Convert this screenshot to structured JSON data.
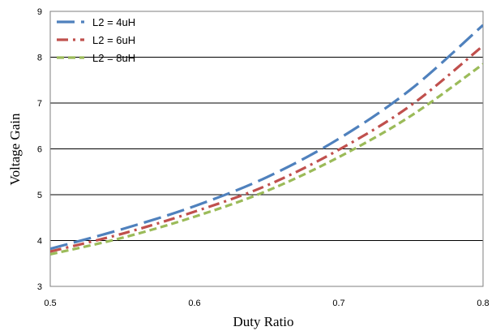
{
  "chart_data": {
    "type": "line",
    "title": "",
    "xlabel": "Duty Ratio",
    "ylabel": "Voltage Gain",
    "xlim": [
      0.5,
      0.8
    ],
    "ylim": [
      3,
      9
    ],
    "x_ticks": [
      "0.5",
      "0.6",
      "0.7",
      "0.8"
    ],
    "y_ticks": [
      "3",
      "4",
      "5",
      "6",
      "7",
      "8",
      "9"
    ],
    "grid": "horizontal",
    "legend_position": "top-left",
    "x": [
      0.5,
      0.55,
      0.6,
      0.65,
      0.7,
      0.75,
      0.8
    ],
    "series": [
      {
        "name": "L2 = 4uH",
        "color": "#4f81bd",
        "dash": "long-dash",
        "values": [
          3.82,
          4.25,
          4.75,
          5.38,
          6.22,
          7.3,
          8.7
        ]
      },
      {
        "name": "L2 = 6uH",
        "color": "#c0504d",
        "dash": "dash-dot",
        "values": [
          3.76,
          4.15,
          4.63,
          5.2,
          5.98,
          6.95,
          8.25
        ]
      },
      {
        "name": "L2 = 8uH",
        "color": "#9bbb59",
        "dash": "short-dash",
        "values": [
          3.7,
          4.06,
          4.52,
          5.08,
          5.82,
          6.72,
          7.85
        ]
      }
    ]
  }
}
